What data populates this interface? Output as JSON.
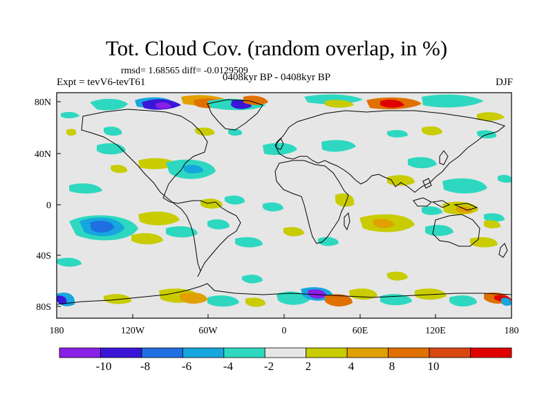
{
  "title": "Tot. Cloud Cov. (random overlap, in %)",
  "stats": "rmsd= 1.68565  diff= -0.0129509",
  "expt": "Expt = tevV6-tevT61",
  "period": "0408kyr BP - 0408kyr BP",
  "season": "DJF",
  "x_ticks": [
    "180",
    "120W",
    "60W",
    "0",
    "60E",
    "120E",
    "180"
  ],
  "y_ticks": [
    "80N",
    "40N",
    "0",
    "40S",
    "80S"
  ],
  "colorbar": {
    "labels": [
      "-10",
      "-8",
      "-6",
      "-4",
      "-2",
      "2",
      "4",
      "8",
      "10"
    ],
    "colors": [
      "#8a1fe6",
      "#3a16d8",
      "#1f6fe0",
      "#16a6de",
      "#2ed8c0",
      "#e6e6e6",
      "#c8cc00",
      "#e0a000",
      "#e07000",
      "#d84810",
      "#e00000"
    ]
  },
  "colors": {
    "land_outline": "#000000",
    "background_anomaly": "#e6e6e6"
  }
}
